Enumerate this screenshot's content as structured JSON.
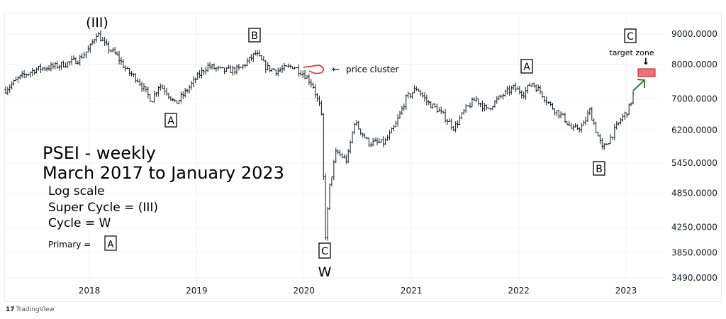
{
  "chart_data": {
    "type": "ohlc-bar",
    "title": "PSEI - weekly",
    "subtitle": "March 2017 to January 2023",
    "notes": [
      "Log scale",
      "Super Cycle = (III)",
      "Cycle = W"
    ],
    "primary_label": "Primary =",
    "primary_box": "A",
    "scale": "log",
    "ylim": [
      3490,
      9000
    ],
    "y_ticks": [
      9000,
      8000,
      7000,
      6200,
      5450,
      4850,
      4250,
      3850,
      3490
    ],
    "y_tick_labels": [
      "9000.0000",
      "8000.0000",
      "7000.0000",
      "6200.0000",
      "5450.0000",
      "4850.0000",
      "4250.0000",
      "3850.0000",
      "3490.0000"
    ],
    "x_ticks": [
      2018,
      2019,
      2020,
      2021,
      2022,
      2023
    ],
    "x_tick_labels": [
      "2018",
      "2019",
      "2020",
      "2021",
      "2022",
      "2023"
    ],
    "xlim": [
      2017.22,
      2023.35
    ],
    "grid": true,
    "price_path": [
      [
        2017.22,
        7250
      ],
      [
        2017.35,
        7600
      ],
      [
        2017.5,
        7850
      ],
      [
        2017.7,
        7950
      ],
      [
        2017.9,
        8150
      ],
      [
        2018.0,
        8500
      ],
      [
        2018.07,
        9050
      ],
      [
        2018.15,
        8600
      ],
      [
        2018.25,
        8300
      ],
      [
        2018.35,
        7800
      ],
      [
        2018.45,
        7550
      ],
      [
        2018.5,
        7300
      ],
      [
        2018.58,
        6950
      ],
      [
        2018.65,
        7400
      ],
      [
        2018.72,
        7200
      ],
      [
        2018.8,
        6850
      ],
      [
        2018.9,
        7200
      ],
      [
        2019.0,
        7600
      ],
      [
        2019.1,
        7950
      ],
      [
        2019.25,
        7800
      ],
      [
        2019.4,
        7850
      ],
      [
        2019.55,
        8350
      ],
      [
        2019.65,
        7900
      ],
      [
        2019.75,
        7800
      ],
      [
        2019.9,
        7950
      ],
      [
        2020.0,
        7700
      ],
      [
        2020.08,
        7400
      ],
      [
        2020.12,
        7000
      ],
      [
        2020.16,
        6700
      ],
      [
        2020.2,
        4100
      ],
      [
        2020.24,
        5000
      ],
      [
        2020.3,
        5700
      ],
      [
        2020.4,
        5500
      ],
      [
        2020.47,
        6400
      ],
      [
        2020.6,
        5900
      ],
      [
        2020.75,
        5900
      ],
      [
        2020.85,
        6300
      ],
      [
        2020.95,
        7000
      ],
      [
        2021.05,
        7300
      ],
      [
        2021.15,
        6900
      ],
      [
        2021.25,
        6700
      ],
      [
        2021.4,
        6250
      ],
      [
        2021.5,
        6700
      ],
      [
        2021.6,
        7000
      ],
      [
        2021.7,
        6700
      ],
      [
        2021.85,
        7100
      ],
      [
        2021.95,
        7300
      ],
      [
        2022.05,
        7150
      ],
      [
        2022.12,
        7450
      ],
      [
        2022.2,
        7200
      ],
      [
        2022.3,
        6800
      ],
      [
        2022.42,
        6500
      ],
      [
        2022.5,
        6200
      ],
      [
        2022.6,
        6300
      ],
      [
        2022.66,
        6700
      ],
      [
        2022.72,
        6200
      ],
      [
        2022.78,
        5750
      ],
      [
        2022.85,
        6000
      ],
      [
        2022.95,
        6450
      ],
      [
        2023.02,
        6700
      ],
      [
        2023.07,
        7150
      ]
    ],
    "annotations": [
      {
        "text": "(III)",
        "t": 2018.07,
        "price": 9050
      },
      {
        "text": "B",
        "boxed": true,
        "t": 2019.55
      },
      {
        "text": "A",
        "boxed": true,
        "t": 2018.8
      },
      {
        "text": "C",
        "boxed": true,
        "t": 2020.2
      },
      {
        "text": "W",
        "t": 2020.2
      },
      {
        "text": "A",
        "boxed": true,
        "t": 2022.12
      },
      {
        "text": "B",
        "boxed": true,
        "t": 2022.78
      },
      {
        "text": "C",
        "boxed": true,
        "t": 2023.05
      },
      {
        "text": "price cluster"
      },
      {
        "text": "target zone"
      }
    ],
    "target_zone": [
      7600,
      7800
    ],
    "colors": {
      "bars": "#131722",
      "cluster": "#e53935",
      "target_fill": "#f0707a",
      "target_border": "#b71c1c",
      "arrow": "#2e7d32"
    }
  },
  "branding": "TradingView"
}
